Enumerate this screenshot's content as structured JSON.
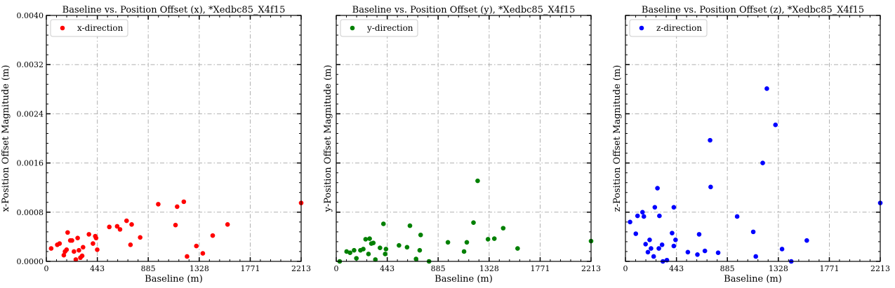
{
  "chart_data": [
    {
      "type": "scatter",
      "title": "Baseline vs. Position Offset (x), *Xedbc85_X4f15",
      "xlabel": "Baseline (m)",
      "ylabel": "x-Position Offset Magnitude (m)",
      "xlim": [
        0,
        2213
      ],
      "ylim": [
        0,
        0.004
      ],
      "xticks": [
        "0",
        "443",
        "885",
        "1328",
        "1771",
        "2213"
      ],
      "yticks": [
        "0.0000",
        "0.0008",
        "0.0016",
        "0.0024",
        "0.0032",
        "0.0040"
      ],
      "grid": true,
      "legend_position": "top-left",
      "series": [
        {
          "name": "x-direction",
          "color": "#ff0000",
          "points": [
            [
              42,
              0.00021
            ],
            [
              95,
              0.00027
            ],
            [
              115,
              0.00029
            ],
            [
              152,
              0.0001
            ],
            [
              162,
              0.00016
            ],
            [
              176,
              0.00019
            ],
            [
              185,
              0.00047
            ],
            [
              208,
              0.00034
            ],
            [
              223,
              0.00034
            ],
            [
              240,
              0.00016
            ],
            [
              256,
              3e-05
            ],
            [
              272,
              0.00038
            ],
            [
              283,
              0.00018
            ],
            [
              296,
              6e-05
            ],
            [
              311,
              9e-05
            ],
            [
              319,
              0.00023
            ],
            [
              370,
              0.00044
            ],
            [
              405,
              0.00029
            ],
            [
              425,
              0.00041
            ],
            [
              432,
              0.00038
            ],
            [
              442,
              0.00019
            ],
            [
              547,
              0.00056
            ],
            [
              615,
              0.00057
            ],
            [
              640,
              0.00052
            ],
            [
              697,
              0.00066
            ],
            [
              731,
              0.00027
            ],
            [
              741,
              0.0006
            ],
            [
              815,
              0.00039
            ],
            [
              972,
              0.00093
            ],
            [
              1122,
              0.00059
            ],
            [
              1136,
              0.00089
            ],
            [
              1194,
              0.00097
            ],
            [
              1222,
              8e-05
            ],
            [
              1303,
              0.00025
            ],
            [
              1359,
              0.00013
            ],
            [
              1445,
              0.00042
            ],
            [
              1574,
              0.0006
            ],
            [
              2213,
              0.00095
            ]
          ]
        }
      ]
    },
    {
      "type": "scatter",
      "title": "Baseline vs. Position Offset (y), *Xedbc85_X4f15",
      "xlabel": "Baseline (m)",
      "ylabel": "y-Position Offset Magnitude (m)",
      "xlim": [
        0,
        2213
      ],
      "ylim": [
        0,
        0.004
      ],
      "xticks": [
        "0",
        "443",
        "885",
        "1328",
        "1771",
        "2213"
      ],
      "grid": true,
      "legend_position": "top-left",
      "series": [
        {
          "name": "y-direction",
          "color": "#008000",
          "points": [
            [
              30,
              0.0
            ],
            [
              90,
              0.00016
            ],
            [
              120,
              0.00014
            ],
            [
              155,
              0.00018
            ],
            [
              175,
              5e-05
            ],
            [
              210,
              0.00018
            ],
            [
              235,
              0.0002
            ],
            [
              255,
              0.00036
            ],
            [
              280,
              0.00012
            ],
            [
              290,
              0.00037
            ],
            [
              305,
              0.00029
            ],
            [
              322,
              0.0003
            ],
            [
              340,
              3e-05
            ],
            [
              380,
              0.00022
            ],
            [
              410,
              0.00061
            ],
            [
              425,
              0.00012
            ],
            [
              432,
              0.0002
            ],
            [
              545,
              0.00026
            ],
            [
              615,
              0.00023
            ],
            [
              640,
              0.00058
            ],
            [
              693,
              4e-05
            ],
            [
              725,
              0.00018
            ],
            [
              733,
              0.00043
            ],
            [
              806,
              0.0
            ],
            [
              970,
              0.00031
            ],
            [
              1110,
              0.00016
            ],
            [
              1134,
              0.00031
            ],
            [
              1192,
              0.00063
            ],
            [
              1228,
              0.00131
            ],
            [
              1318,
              0.00036
            ],
            [
              1373,
              0.00037
            ],
            [
              1450,
              0.00054
            ],
            [
              1575,
              0.00021
            ],
            [
              2213,
              0.00033
            ]
          ]
        }
      ]
    },
    {
      "type": "scatter",
      "title": "Baseline vs. Position Offset (z), *Xedbc85_X4f15",
      "xlabel": "Baseline (m)",
      "ylabel": "z-Position Offset Magnitude (m)",
      "xlim": [
        0,
        2213
      ],
      "ylim": [
        0,
        0.004
      ],
      "xticks": [
        "0",
        "443",
        "885",
        "1328",
        "1771",
        "2213"
      ],
      "grid": true,
      "legend_position": "top-left",
      "series": [
        {
          "name": "z-direction",
          "color": "#0000ff",
          "points": [
            [
              40,
              0.00064
            ],
            [
              90,
              0.00045
            ],
            [
              105,
              0.00074
            ],
            [
              148,
              0.0008
            ],
            [
              160,
              0.00073
            ],
            [
              175,
              0.00028
            ],
            [
              195,
              0.00015
            ],
            [
              210,
              0.00035
            ],
            [
              222,
              0.00021
            ],
            [
              245,
              8e-05
            ],
            [
              255,
              0.00088
            ],
            [
              278,
              0.00119
            ],
            [
              290,
              0.00021
            ],
            [
              295,
              0.00074
            ],
            [
              318,
              0.00027
            ],
            [
              325,
              0.0
            ],
            [
              360,
              2e-05
            ],
            [
              405,
              0.00046
            ],
            [
              420,
              0.00025
            ],
            [
              420,
              0.00088
            ],
            [
              435,
              0.00035
            ],
            [
              542,
              0.00015
            ],
            [
              625,
              0.00011
            ],
            [
              640,
              0.00044
            ],
            [
              690,
              0.00017
            ],
            [
              735,
              0.00197
            ],
            [
              740,
              0.00121
            ],
            [
              805,
              0.00014
            ],
            [
              970,
              0.00073
            ],
            [
              1110,
              0.00048
            ],
            [
              1132,
              8e-05
            ],
            [
              1192,
              0.0016
            ],
            [
              1228,
              0.00281
            ],
            [
              1303,
              0.00222
            ],
            [
              1360,
              0.0002
            ],
            [
              1440,
              0.0
            ],
            [
              1575,
              0.00034
            ],
            [
              2213,
              0.00095
            ]
          ]
        }
      ]
    }
  ]
}
